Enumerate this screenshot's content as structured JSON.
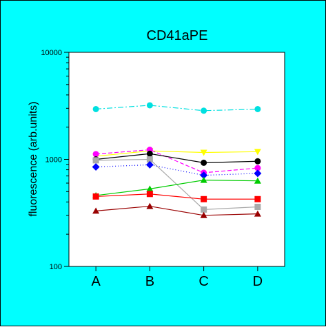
{
  "chart_data": {
    "type": "line",
    "title": "CD41aPE",
    "xlabel": "",
    "ylabel": "fluorescence (arb.units)",
    "yscale": "log",
    "ylim": [
      100,
      10000
    ],
    "yticks": [
      {
        "value": 100,
        "label": "100"
      },
      {
        "value": 1000,
        "label": "1000"
      },
      {
        "value": 10000,
        "label": "10000"
      }
    ],
    "categories": [
      "A",
      "B",
      "C",
      "D"
    ],
    "grid": false,
    "series": [
      {
        "color": "#00e0e0",
        "marker": "circle",
        "line": "dashdot",
        "values": [
          2950,
          3200,
          2850,
          2950
        ]
      },
      {
        "color": "#ffff00",
        "marker": "triangle-down",
        "line": "solid",
        "values": [
          1070,
          1200,
          1160,
          1180
        ]
      },
      {
        "color": "#ff00ff",
        "marker": "circle",
        "line": "dashed",
        "values": [
          1120,
          1230,
          750,
          830
        ]
      },
      {
        "color": "#000000",
        "marker": "circle",
        "line": "solid",
        "values": [
          1000,
          1130,
          930,
          960
        ]
      },
      {
        "color": "#aaaaaa",
        "marker": "square",
        "line": "solid",
        "values": [
          980,
          1000,
          340,
          360
        ]
      },
      {
        "color": "#0000ff",
        "marker": "diamond",
        "line": "dotted",
        "values": [
          850,
          890,
          710,
          740
        ]
      },
      {
        "color": "#00cc00",
        "marker": "triangle-up",
        "line": "solid",
        "values": [
          460,
          530,
          640,
          630
        ]
      },
      {
        "color": "#ff0000",
        "marker": "square",
        "line": "solid",
        "values": [
          450,
          475,
          425,
          425
        ]
      },
      {
        "color": "#990000",
        "marker": "triangle-up",
        "line": "solid",
        "values": [
          330,
          365,
          300,
          310
        ]
      }
    ]
  }
}
